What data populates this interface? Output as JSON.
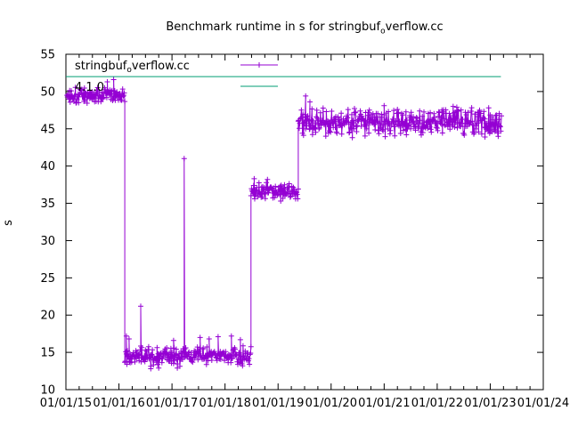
{
  "chart_data": {
    "type": "scatter",
    "style_note": "gnuplot linespoints, plus markers, noisy step-like benchmark series",
    "title": {
      "text": "Benchmark runtime in s for stringbuf_overflow.cc",
      "pre": "Benchmark runtime in s for stringbuf",
      "sub": "o",
      "post": "verflow.cc"
    },
    "xlabel": "",
    "ylabel": "s",
    "ylim": [
      10,
      55
    ],
    "xlim_years": [
      2015,
      2024
    ],
    "y_ticks": [
      10,
      15,
      20,
      25,
      30,
      35,
      40,
      45,
      50,
      55
    ],
    "x_tick_years": [
      2015,
      2016,
      2017,
      2018,
      2019,
      2020,
      2021,
      2022,
      2023,
      2024
    ],
    "x_tick_labels": [
      "01/01/15",
      "01/01/16",
      "01/01/17",
      "01/01/18",
      "01/01/19",
      "01/01/20",
      "01/01/21",
      "01/01/22",
      "01/01/23",
      "01/01/24"
    ],
    "x_minor_ticks_per_year": 4,
    "grid": false,
    "legend_position": "top-left",
    "background_color": "#ffffff",
    "axis_color": "#000000",
    "series": [
      {
        "name": "stringbuf_overflow.cc",
        "label": {
          "pre": "stringbuf",
          "sub": "o",
          "post": "verflow.cc"
        },
        "color": "#9400D3",
        "style": "linespoints",
        "marker": "plus",
        "segments": [
          {
            "x_start": 2015.02,
            "x_end": 2016.11,
            "y_typical": 49.5,
            "y_min": 48.3,
            "y_max": 50.9
          },
          {
            "x_start": 2016.11,
            "x_end": 2018.49,
            "y_typical": 14.5,
            "y_min": 13.0,
            "y_max": 15.9
          },
          {
            "x_start": 2018.49,
            "x_end": 2019.38,
            "y_typical": 36.6,
            "y_min": 35.6,
            "y_max": 38.1
          },
          {
            "x_start": 2019.38,
            "x_end": 2023.21,
            "y_typical": 46.0,
            "y_min": 43.8,
            "y_max": 47.9
          }
        ],
        "outliers": [
          {
            "x": 2015.78,
            "y": 51.3
          },
          {
            "x": 2015.9,
            "y": 51.6
          },
          {
            "x": 2016.14,
            "y": 17.2
          },
          {
            "x": 2016.19,
            "y": 16.8
          },
          {
            "x": 2016.41,
            "y": 21.2
          },
          {
            "x": 2016.6,
            "y": 12.8
          },
          {
            "x": 2016.75,
            "y": 12.9
          },
          {
            "x": 2017.03,
            "y": 16.6
          },
          {
            "x": 2017.1,
            "y": 12.9
          },
          {
            "x": 2017.23,
            "y": 41.0
          },
          {
            "x": 2017.53,
            "y": 17.0
          },
          {
            "x": 2017.7,
            "y": 16.8
          },
          {
            "x": 2017.87,
            "y": 17.1
          },
          {
            "x": 2018.12,
            "y": 17.2
          },
          {
            "x": 2018.29,
            "y": 16.7
          },
          {
            "x": 2018.55,
            "y": 38.3
          },
          {
            "x": 2018.8,
            "y": 38.2
          },
          {
            "x": 2019.05,
            "y": 35.3
          },
          {
            "x": 2019.52,
            "y": 49.4
          },
          {
            "x": 2019.6,
            "y": 48.6
          },
          {
            "x": 2020.4,
            "y": 43.8
          },
          {
            "x": 2021.0,
            "y": 48.1
          },
          {
            "x": 2022.3,
            "y": 48.0
          },
          {
            "x": 2022.9,
            "y": 43.9
          },
          {
            "x": 2023.15,
            "y": 44.0
          }
        ]
      },
      {
        "name": "4.1.0",
        "label": {
          "pre": "4.1.0",
          "sub": "",
          "post": ""
        },
        "color": "#009E73",
        "style": "line",
        "points": [
          {
            "x": 2015.0,
            "y": 52.0
          },
          {
            "x": 2023.2,
            "y": 52.0
          }
        ]
      }
    ]
  }
}
